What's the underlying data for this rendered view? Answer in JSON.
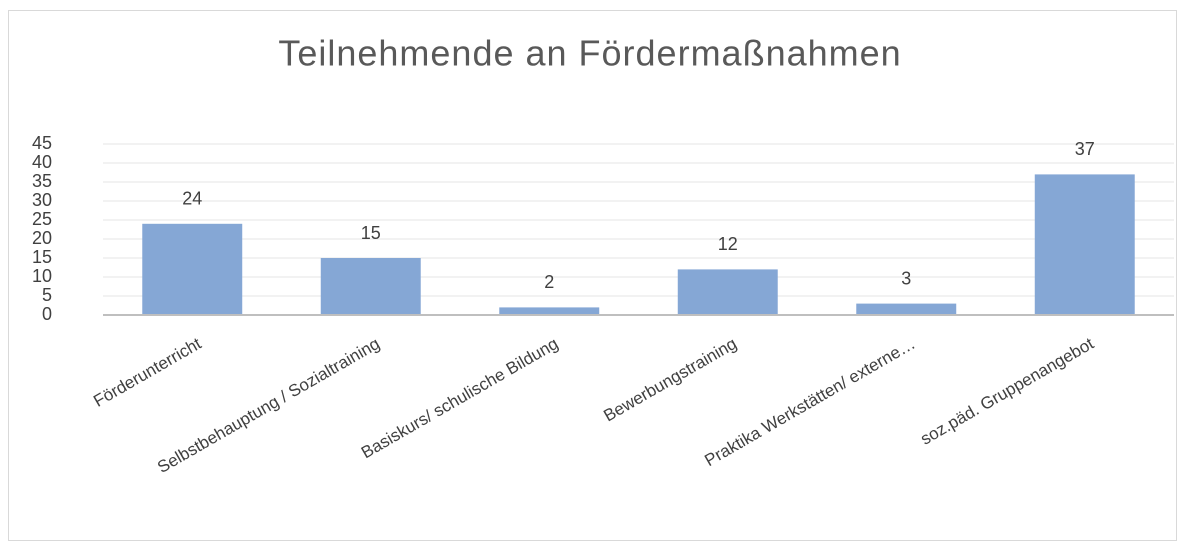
{
  "chart_data": {
    "type": "bar",
    "title": "Teilnehmende an Fördermaßnahmen",
    "categories": [
      "Förderunterricht",
      "Selbstbehauptung / Sozialtraining",
      "Basiskurs/ schulische Bildung",
      "Bewerbungstraining",
      "Praktika Werkstätten/ externe…",
      "soz.päd. Gruppenangebot"
    ],
    "values": [
      24,
      15,
      2,
      12,
      3,
      37
    ],
    "color": "#85a7d5",
    "ylim": [
      0,
      45
    ],
    "yticks": [
      0,
      5,
      10,
      15,
      20,
      25,
      30,
      35,
      40,
      45
    ],
    "grid": true
  }
}
